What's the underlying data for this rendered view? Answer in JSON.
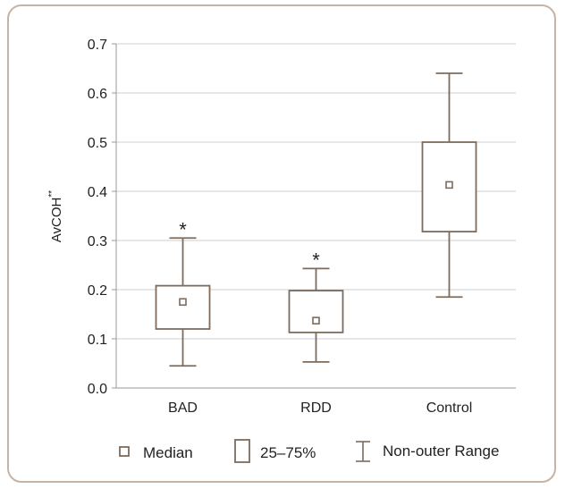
{
  "chart_data": {
    "type": "box",
    "ylabel": "AvCOH",
    "ylabel_superscript": "**",
    "ylim": [
      0.0,
      0.7
    ],
    "yticks": [
      "0.0",
      "0.1",
      "0.2",
      "0.3",
      "0.4",
      "0.5",
      "0.6",
      "0.7"
    ],
    "grid": true,
    "categories": [
      "BAD",
      "RDD",
      "Control"
    ],
    "boxes": [
      {
        "category": "BAD",
        "min": 0.045,
        "q1": 0.12,
        "median": 0.175,
        "q3": 0.208,
        "max": 0.305,
        "annotation": "*"
      },
      {
        "category": "RDD",
        "min": 0.053,
        "q1": 0.113,
        "median": 0.137,
        "q3": 0.198,
        "max": 0.243,
        "annotation": "*"
      },
      {
        "category": "Control",
        "min": 0.185,
        "q1": 0.318,
        "median": 0.413,
        "q3": 0.5,
        "max": 0.64,
        "annotation": ""
      }
    ],
    "legend": {
      "placement": "bottom",
      "items": [
        {
          "key": "median",
          "label": "Median"
        },
        {
          "key": "box",
          "label": "25–75%"
        },
        {
          "key": "whisker",
          "label": "Non-outer Range"
        }
      ]
    },
    "colors": {
      "box": "#7d6b5d",
      "grid": "#cfcfcf",
      "frame": "#c7b3a3"
    }
  }
}
